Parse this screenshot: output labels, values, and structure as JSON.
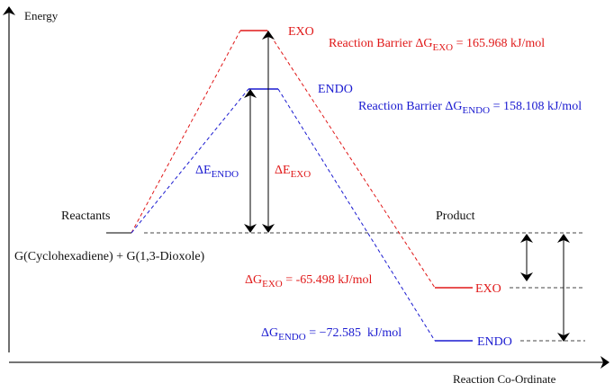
{
  "axes": {
    "y_label": "Energy",
    "x_label": "Reaction Co-Ordinate"
  },
  "reactants": {
    "label": "Reactants",
    "formula": "G(Cyclohexadiene) + G(1,3-Dioxole)"
  },
  "product": {
    "label": "Product"
  },
  "transition_states": {
    "exo": {
      "label": "EXO",
      "barrier_prefix": "Reaction Barrier ΔG",
      "barrier_sub": "EXO",
      "barrier_value": " = 165.968 kJ/mol"
    },
    "endo": {
      "label": "ENDO",
      "barrier_prefix": "Reaction Barrier ΔG",
      "barrier_sub": "ENDO",
      "barrier_value": " = 158.108 kJ/mol"
    }
  },
  "activation_labels": {
    "endo": {
      "symbol": "ΔE",
      "sub": "ENDO"
    },
    "exo": {
      "symbol": "ΔE",
      "sub": "EXO"
    }
  },
  "products": {
    "exo": {
      "label": "EXO",
      "symbol": "ΔG",
      "sub": "EXO",
      "value": " = -65.498 kJ/mol"
    },
    "endo": {
      "label": "ENDO",
      "symbol": "ΔG",
      "sub": "ENDO",
      "value": " = −72.585  kJ/mol"
    }
  },
  "colors": {
    "exo": "#e01818",
    "endo": "#1a1ad0",
    "axis": "#222222",
    "reference": "#444444"
  }
}
